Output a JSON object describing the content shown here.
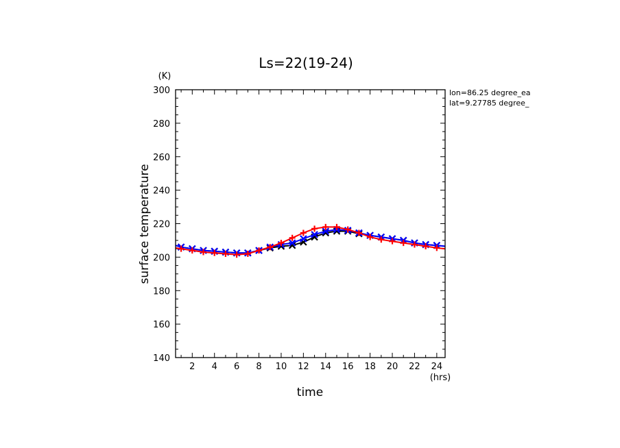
{
  "chart_data": {
    "type": "line",
    "title": "Ls=22(19-24)",
    "xlabel": "time",
    "ylabel": "surface temperature",
    "x_unit": "(hrs)",
    "y_unit": "(K)",
    "xlim": [
      0.5,
      24.75
    ],
    "ylim": [
      140,
      300
    ],
    "xticks": [
      2,
      4,
      6,
      8,
      10,
      12,
      14,
      16,
      18,
      20,
      22,
      24
    ],
    "yticks": [
      140,
      160,
      180,
      200,
      220,
      240,
      260,
      280,
      300
    ],
    "annotations": [
      "lon=86.25 degree_ea",
      "lat=9.27785 degree_"
    ],
    "x": [
      0.5,
      1,
      2,
      3,
      4,
      5,
      6,
      7,
      8,
      9,
      10,
      11,
      12,
      13,
      14,
      15,
      16,
      17,
      18,
      19,
      20,
      21,
      22,
      23,
      24,
      24.75
    ],
    "series": [
      {
        "color": "#000000",
        "marker": "x",
        "values": [
          207,
          206,
          205,
          204,
          203.5,
          203,
          202.5,
          202.5,
          204,
          205.5,
          206.5,
          207,
          209,
          212,
          214.5,
          215.5,
          215.5,
          214,
          213,
          212,
          211,
          210,
          208.5,
          207.5,
          207,
          206.5
        ]
      },
      {
        "color": "#0000ff",
        "marker": "x",
        "values": [
          207,
          206,
          205,
          204,
          203.5,
          203,
          202.5,
          202.5,
          204,
          206,
          207.5,
          208.5,
          211,
          213.5,
          215.5,
          216.5,
          216,
          214.5,
          213,
          212,
          211,
          210,
          208.5,
          207.5,
          207,
          206.5
        ]
      },
      {
        "color": "#ff0000",
        "marker": "+",
        "values": [
          205.5,
          205,
          204,
          203,
          202.5,
          202,
          201.5,
          202,
          204,
          206,
          208.5,
          211.5,
          214.5,
          217,
          218,
          218,
          216.5,
          214.5,
          212,
          210.5,
          209.5,
          208.5,
          207.5,
          206.5,
          205.5,
          205
        ]
      }
    ]
  }
}
